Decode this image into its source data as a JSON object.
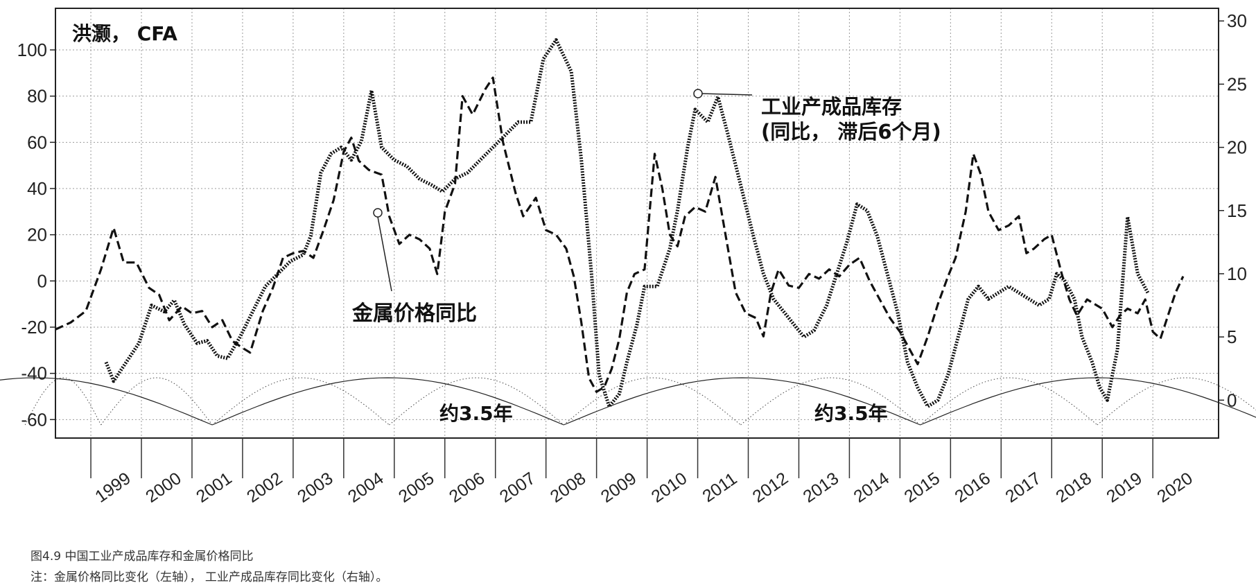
{
  "chart_data": {
    "type": "line",
    "source_label": "洪灏， CFA",
    "annotations": [
      {
        "id": "inventory",
        "lines": [
          "工业产成品库存",
          "(同比， 滞后6个月)"
        ]
      },
      {
        "id": "metal",
        "lines": [
          "金属价格同比"
        ]
      },
      {
        "id": "cycle1",
        "lines": [
          "约3.5年"
        ]
      },
      {
        "id": "cycle2",
        "lines": [
          "约3.5年"
        ]
      }
    ],
    "y_left": {
      "min": -68,
      "max": 118,
      "ticks": [
        -60,
        -40,
        -20,
        0,
        20,
        40,
        60,
        80,
        100
      ]
    },
    "y_right": {
      "min": -3,
      "max": 31,
      "ticks": [
        0,
        5,
        10,
        15,
        20,
        25,
        30
      ]
    },
    "x": {
      "min": 1998.3,
      "max": 2021.3,
      "ticks": [
        1999,
        2000,
        2001,
        2002,
        2003,
        2004,
        2005,
        2006,
        2007,
        2008,
        2009,
        2010,
        2011,
        2012,
        2013,
        2014,
        2015,
        2016,
        2017,
        2018,
        2019,
        2020
      ]
    },
    "grid": true,
    "series": [
      {
        "name": "金属价格同比",
        "axis": "left",
        "style": "dashed",
        "points": [
          [
            1998.3,
            -21
          ],
          [
            1998.6,
            -18
          ],
          [
            1998.9,
            -13
          ],
          [
            1999.2,
            5
          ],
          [
            1999.45,
            23
          ],
          [
            1999.65,
            8
          ],
          [
            1999.9,
            8
          ],
          [
            2000.15,
            -3
          ],
          [
            2000.35,
            -6
          ],
          [
            2000.55,
            -17
          ],
          [
            2000.8,
            -11
          ],
          [
            2001.0,
            -14
          ],
          [
            2001.2,
            -13
          ],
          [
            2001.4,
            -20
          ],
          [
            2001.6,
            -17
          ],
          [
            2001.8,
            -26
          ],
          [
            2002.0,
            -29
          ],
          [
            2002.15,
            -31
          ],
          [
            2002.4,
            -13
          ],
          [
            2002.6,
            -3
          ],
          [
            2002.8,
            10
          ],
          [
            2003.0,
            12
          ],
          [
            2003.2,
            13
          ],
          [
            2003.4,
            10
          ],
          [
            2003.6,
            22
          ],
          [
            2003.8,
            35
          ],
          [
            2004.0,
            56
          ],
          [
            2004.15,
            62
          ],
          [
            2004.3,
            52
          ],
          [
            2004.5,
            48
          ],
          [
            2004.75,
            46
          ],
          [
            2004.9,
            28
          ],
          [
            2005.1,
            16
          ],
          [
            2005.3,
            20
          ],
          [
            2005.5,
            18
          ],
          [
            2005.7,
            14
          ],
          [
            2005.85,
            3
          ],
          [
            2006.0,
            30
          ],
          [
            2006.2,
            42
          ],
          [
            2006.35,
            80
          ],
          [
            2006.55,
            72
          ],
          [
            2006.8,
            83
          ],
          [
            2006.95,
            88
          ],
          [
            2007.15,
            60
          ],
          [
            2007.4,
            38
          ],
          [
            2007.55,
            28
          ],
          [
            2007.8,
            36
          ],
          [
            2008.0,
            22
          ],
          [
            2008.2,
            20
          ],
          [
            2008.4,
            14
          ],
          [
            2008.55,
            2
          ],
          [
            2008.7,
            -18
          ],
          [
            2008.85,
            -42
          ],
          [
            2009.0,
            -48
          ],
          [
            2009.15,
            -46
          ],
          [
            2009.3,
            -38
          ],
          [
            2009.45,
            -25
          ],
          [
            2009.6,
            -5
          ],
          [
            2009.75,
            3
          ],
          [
            2009.95,
            5
          ],
          [
            2010.05,
            30
          ],
          [
            2010.15,
            55
          ],
          [
            2010.3,
            40
          ],
          [
            2010.45,
            20
          ],
          [
            2010.6,
            15
          ],
          [
            2010.75,
            28
          ],
          [
            2010.95,
            32
          ],
          [
            2011.15,
            30
          ],
          [
            2011.35,
            45
          ],
          [
            2011.55,
            20
          ],
          [
            2011.75,
            -5
          ],
          [
            2011.95,
            -14
          ],
          [
            2012.15,
            -16
          ],
          [
            2012.3,
            -24
          ],
          [
            2012.45,
            -5
          ],
          [
            2012.6,
            5
          ],
          [
            2012.8,
            -2
          ],
          [
            2013.0,
            -3
          ],
          [
            2013.2,
            3
          ],
          [
            2013.4,
            1
          ],
          [
            2013.6,
            5
          ],
          [
            2013.8,
            2
          ],
          [
            2014.0,
            7
          ],
          [
            2014.2,
            10
          ],
          [
            2014.4,
            0
          ],
          [
            2014.6,
            -8
          ],
          [
            2014.8,
            -16
          ],
          [
            2015.0,
            -22
          ],
          [
            2015.2,
            -30
          ],
          [
            2015.35,
            -36
          ],
          [
            2015.55,
            -24
          ],
          [
            2015.75,
            -10
          ],
          [
            2015.95,
            2
          ],
          [
            2016.1,
            10
          ],
          [
            2016.3,
            30
          ],
          [
            2016.45,
            55
          ],
          [
            2016.6,
            46
          ],
          [
            2016.75,
            30
          ],
          [
            2016.95,
            22
          ],
          [
            2017.15,
            24
          ],
          [
            2017.35,
            28
          ],
          [
            2017.5,
            12
          ],
          [
            2017.65,
            14
          ],
          [
            2017.85,
            18
          ],
          [
            2018.0,
            20
          ],
          [
            2018.2,
            3
          ],
          [
            2018.35,
            -8
          ],
          [
            2018.5,
            -15
          ],
          [
            2018.7,
            -8
          ],
          [
            2018.85,
            -10
          ],
          [
            2019.0,
            -12
          ],
          [
            2019.2,
            -20
          ],
          [
            2019.35,
            -15
          ],
          [
            2019.5,
            -12
          ],
          [
            2019.7,
            -14
          ],
          [
            2019.85,
            -8
          ],
          [
            2020.0,
            -22
          ],
          [
            2020.15,
            -25
          ],
          [
            2020.3,
            -15
          ],
          [
            2020.45,
            -5
          ],
          [
            2020.6,
            2
          ]
        ]
      },
      {
        "name": "工业产成品库存",
        "axis": "right",
        "style": "dotted",
        "points": [
          [
            1999.3,
            3
          ],
          [
            1999.45,
            1.5
          ],
          [
            1999.7,
            3
          ],
          [
            1999.95,
            4.5
          ],
          [
            2000.2,
            7.5
          ],
          [
            2000.45,
            7
          ],
          [
            2000.65,
            7.9
          ],
          [
            2000.85,
            6
          ],
          [
            2001.1,
            4.5
          ],
          [
            2001.3,
            4.7
          ],
          [
            2001.5,
            3.5
          ],
          [
            2001.7,
            3.3
          ],
          [
            2001.95,
            5
          ],
          [
            2002.2,
            7
          ],
          [
            2002.45,
            9
          ],
          [
            2002.7,
            10
          ],
          [
            2002.95,
            11
          ],
          [
            2003.2,
            11.5
          ],
          [
            2003.35,
            13
          ],
          [
            2003.55,
            18
          ],
          [
            2003.75,
            19.5
          ],
          [
            2003.95,
            20
          ],
          [
            2004.15,
            19
          ],
          [
            2004.35,
            20.5
          ],
          [
            2004.55,
            24.5
          ],
          [
            2004.75,
            20
          ],
          [
            2005.0,
            19
          ],
          [
            2005.25,
            18.5
          ],
          [
            2005.5,
            17.5
          ],
          [
            2005.75,
            17
          ],
          [
            2005.95,
            16.5
          ],
          [
            2006.2,
            17.5
          ],
          [
            2006.45,
            18
          ],
          [
            2006.7,
            19
          ],
          [
            2006.95,
            20
          ],
          [
            2007.2,
            21
          ],
          [
            2007.45,
            22
          ],
          [
            2007.7,
            22
          ],
          [
            2007.95,
            27
          ],
          [
            2008.2,
            28.5
          ],
          [
            2008.5,
            26
          ],
          [
            2008.7,
            19
          ],
          [
            2008.9,
            10
          ],
          [
            2009.05,
            2
          ],
          [
            2009.25,
            -0.5
          ],
          [
            2009.45,
            0.5
          ],
          [
            2009.6,
            3
          ],
          [
            2009.8,
            6
          ],
          [
            2009.95,
            9
          ],
          [
            2010.2,
            9
          ],
          [
            2010.45,
            12
          ],
          [
            2010.6,
            15
          ],
          [
            2010.8,
            20
          ],
          [
            2010.95,
            23
          ],
          [
            2011.2,
            22
          ],
          [
            2011.4,
            24
          ],
          [
            2011.6,
            21
          ],
          [
            2011.85,
            17
          ],
          [
            2012.1,
            13
          ],
          [
            2012.3,
            10
          ],
          [
            2012.5,
            8
          ],
          [
            2012.7,
            7
          ],
          [
            2012.9,
            6
          ],
          [
            2013.1,
            5
          ],
          [
            2013.3,
            5.5
          ],
          [
            2013.55,
            7.5
          ],
          [
            2013.75,
            10
          ],
          [
            2013.95,
            12.5
          ],
          [
            2014.15,
            15.5
          ],
          [
            2014.35,
            15
          ],
          [
            2014.55,
            13
          ],
          [
            2014.75,
            10
          ],
          [
            2014.95,
            7
          ],
          [
            2015.15,
            3
          ],
          [
            2015.35,
            1
          ],
          [
            2015.55,
            -0.5
          ],
          [
            2015.75,
            0
          ],
          [
            2015.95,
            2
          ],
          [
            2016.15,
            5
          ],
          [
            2016.35,
            8
          ],
          [
            2016.55,
            9
          ],
          [
            2016.75,
            8
          ],
          [
            2016.95,
            8.5
          ],
          [
            2017.15,
            9
          ],
          [
            2017.35,
            8.5
          ],
          [
            2017.55,
            8
          ],
          [
            2017.75,
            7.5
          ],
          [
            2017.95,
            8
          ],
          [
            2018.1,
            10
          ],
          [
            2018.25,
            9.5
          ],
          [
            2018.45,
            8
          ],
          [
            2018.6,
            5
          ],
          [
            2018.8,
            3
          ],
          [
            2018.95,
            1
          ],
          [
            2019.1,
            0
          ],
          [
            2019.3,
            4
          ],
          [
            2019.5,
            14.5
          ],
          [
            2019.7,
            10
          ],
          [
            2019.9,
            8.5
          ]
        ]
      }
    ]
  },
  "caption": {
    "title": "图4.9 中国工业产成品库存和金属价格同比",
    "note": "注：金属价格同比变化（左轴）， 工业产成品库存同比变化（右轴）。"
  }
}
